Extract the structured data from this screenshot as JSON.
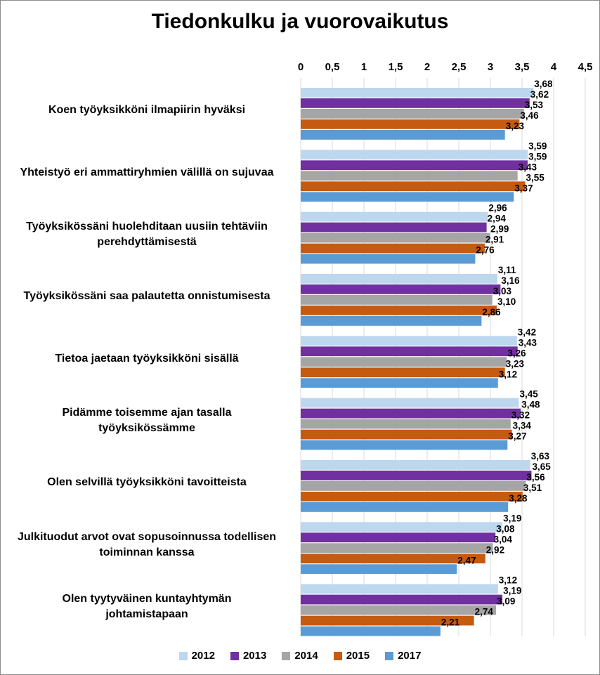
{
  "chart_data": {
    "type": "bar",
    "orientation": "horizontal",
    "title": "Tiedonkulku ja vuorovaikutus",
    "xlim": [
      0,
      4.5
    ],
    "ticks": [
      0,
      0.5,
      1,
      1.5,
      2,
      2.5,
      3,
      3.5,
      4,
      4.5
    ],
    "tick_labels": [
      "0",
      "0,5",
      "1",
      "1,5",
      "2",
      "2,5",
      "3",
      "3,5",
      "4",
      "4,5"
    ],
    "grid": true,
    "legend_position": "bottom",
    "categories": [
      "Koen työyksikköni ilmapiirin hyväksi",
      "Yhteistyö eri ammattiryhmien välillä on sujuvaa",
      "Työyksikössäni huolehditaan uusiin tehtäviin perehdyttämisestä",
      "Työyksikössäni saa palautetta onnistumisesta",
      "Tietoa jaetaan työyksikköni sisällä",
      "Pidämme toisemme ajan tasalla työyksikössämme",
      "Olen selvillä työyksikköni tavoitteista",
      "Julkituodut arvot ovat sopusoinnussa todellisen toiminnan kanssa",
      "Olen tyytyväinen kuntayhtymän johtamistapaan"
    ],
    "category_lines": [
      [
        "Koen työyksikköni ilmapiirin hyväksi"
      ],
      [
        "Yhteistyö eri ammattiryhmien välillä on sujuvaa"
      ],
      [
        "Työyksikössäni huolehditaan uusiin tehtäviin",
        "perehdyttämisestä"
      ],
      [
        "Työyksikössäni saa palautetta onnistumisesta"
      ],
      [
        "Tietoa jaetaan työyksikköni sisällä"
      ],
      [
        "Pidämme toisemme ajan tasalla",
        "työyksikössämme"
      ],
      [
        "Olen selvillä työyksikköni tavoitteista"
      ],
      [
        "Julkituodut arvot ovat sopusoinnussa todellisen",
        "toiminnan kanssa"
      ],
      [
        "Olen tyytyväinen kuntayhtymän",
        "johtamistapaan"
      ]
    ],
    "series": [
      {
        "name": "2012",
        "color": "#bdd7ee",
        "values": [
          3.68,
          3.59,
          2.96,
          3.11,
          3.42,
          3.45,
          3.63,
          3.19,
          3.12
        ],
        "labels": [
          "3,68",
          "3,59",
          "2,96",
          "3,11",
          "3,42",
          "3,45",
          "3,63",
          "3,19",
          "3,12"
        ]
      },
      {
        "name": "2013",
        "color": "#7030a0",
        "values": [
          3.62,
          3.59,
          2.94,
          3.16,
          3.43,
          3.48,
          3.65,
          3.08,
          3.19
        ],
        "labels": [
          "3,62",
          "3,59",
          "2,94",
          "3,16",
          "3,43",
          "3,48",
          "3,65",
          "3,08",
          "3,19"
        ]
      },
      {
        "name": "2014",
        "color": "#a5a5a5",
        "values": [
          3.53,
          3.43,
          2.99,
          3.03,
          3.26,
          3.32,
          3.56,
          3.04,
          3.09
        ],
        "labels": [
          "3,53",
          "3,43",
          "2,99",
          "3,03",
          "3,26",
          "3,32",
          "3,56",
          "3,04",
          "3,09"
        ]
      },
      {
        "name": "2015",
        "color": "#c55a11",
        "values": [
          3.46,
          3.55,
          2.91,
          3.1,
          3.23,
          3.34,
          3.51,
          2.92,
          2.74
        ],
        "labels": [
          "3,46",
          "3,55",
          "2,91",
          "3,10",
          "3,23",
          "3,34",
          "3,51",
          "2,92",
          "2,74"
        ]
      },
      {
        "name": "2017",
        "color": "#5b9bd5",
        "values": [
          3.23,
          3.37,
          2.76,
          2.86,
          3.12,
          3.27,
          3.28,
          2.47,
          2.21
        ],
        "labels": [
          "3,23",
          "3,37",
          "2,76",
          "2,86",
          "3,12",
          "3,27",
          "3,28",
          "2,47",
          "2,21"
        ]
      }
    ]
  }
}
